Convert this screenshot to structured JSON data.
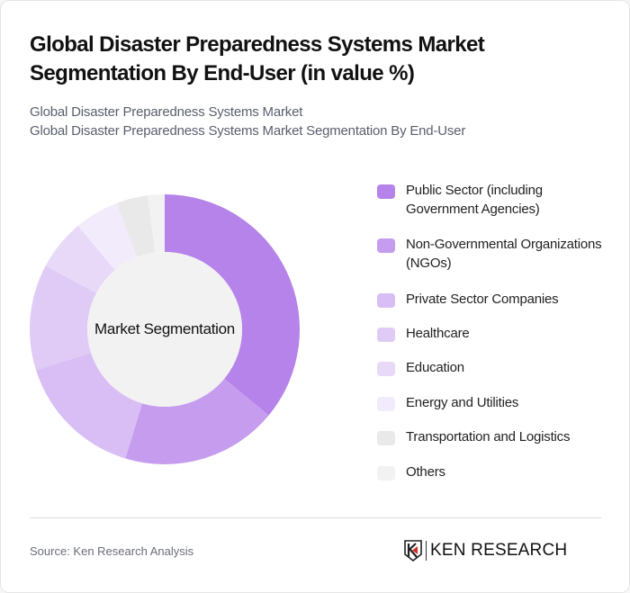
{
  "header": {
    "title": "Global Disaster Preparedness Systems Market Segmentation By End-User (in value %)",
    "subtitle_line1": "Global Disaster Preparedness Systems Market",
    "subtitle_line2": "Global Disaster Preparedness Systems Market Segmentation By End-User"
  },
  "chart": {
    "center_label": "Market Segmentation"
  },
  "chart_data": {
    "type": "pie",
    "style": "donut",
    "title": "Global Disaster Preparedness Systems Market Segmentation By End-User (in value %)",
    "center_label": "Market Segmentation",
    "categories": [
      "Public Sector (including Government Agencies)",
      "Non-Governmental Organizations (NGOs)",
      "Private Sector Companies",
      "Healthcare",
      "Education",
      "Energy and Utilities",
      "Transportation and Logistics",
      "Others"
    ],
    "values": [
      36,
      18.7,
      15.4,
      12.7,
      6.1,
      5.3,
      3.8,
      2
    ],
    "colors": [
      "#b583e9",
      "#c69cee",
      "#d8bef4",
      "#e0cbf6",
      "#e8d9f8",
      "#f2ebfb",
      "#e9e9e9",
      "#f2f2f2"
    ],
    "legend_position": "right"
  },
  "legend": {
    "items": [
      {
        "label": "Public Sector (including Government Agencies)",
        "color": "#b583e9"
      },
      {
        "label": "Non-Governmental Organizations (NGOs)",
        "color": "#c69cee"
      },
      {
        "label": "Private Sector Companies",
        "color": "#d8bef4"
      },
      {
        "label": "Healthcare",
        "color": "#e0cbf6"
      },
      {
        "label": "Education",
        "color": "#e8d9f8"
      },
      {
        "label": "Energy and Utilities",
        "color": "#f2ebfb"
      },
      {
        "label": "Transportation and Logistics",
        "color": "#e9e9e9"
      },
      {
        "label": "Others",
        "color": "#f2f2f2"
      }
    ]
  },
  "footer": {
    "source": "Source: Ken Research Analysis",
    "logo_text": "KEN RESEARCH",
    "logo_accent": "#d32f2f"
  }
}
